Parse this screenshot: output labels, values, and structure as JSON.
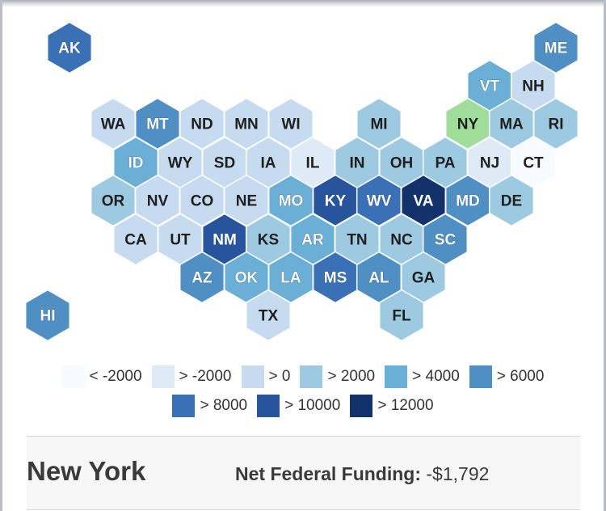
{
  "colors": {
    "bins": [
      "#f7fbff",
      "#deebf7",
      "#c6dbef",
      "#9ecae1",
      "#6baed6",
      "#4f8fc4",
      "#3a70b5",
      "#27549c",
      "#13316a"
    ],
    "selected": "#a1dd9a",
    "hex_stroke": "#ffffff"
  },
  "map": {
    "states": [
      {
        "abbr": "AK",
        "bin": 6
      },
      {
        "abbr": "ME",
        "bin": 5
      },
      {
        "abbr": "VT",
        "bin": 4
      },
      {
        "abbr": "NH",
        "bin": 2
      },
      {
        "abbr": "WA",
        "bin": 2
      },
      {
        "abbr": "MT",
        "bin": 5
      },
      {
        "abbr": "ND",
        "bin": 2
      },
      {
        "abbr": "MN",
        "bin": 2
      },
      {
        "abbr": "WI",
        "bin": 2
      },
      {
        "abbr": "MI",
        "bin": 3
      },
      {
        "abbr": "NY",
        "bin": -1
      },
      {
        "abbr": "MA",
        "bin": 3
      },
      {
        "abbr": "RI",
        "bin": 3
      },
      {
        "abbr": "ID",
        "bin": 4
      },
      {
        "abbr": "WY",
        "bin": 2
      },
      {
        "abbr": "SD",
        "bin": 2
      },
      {
        "abbr": "IA",
        "bin": 2
      },
      {
        "abbr": "IL",
        "bin": 1
      },
      {
        "abbr": "IN",
        "bin": 3
      },
      {
        "abbr": "OH",
        "bin": 3
      },
      {
        "abbr": "PA",
        "bin": 3
      },
      {
        "abbr": "NJ",
        "bin": 1
      },
      {
        "abbr": "CT",
        "bin": 0
      },
      {
        "abbr": "OR",
        "bin": 3
      },
      {
        "abbr": "NV",
        "bin": 2
      },
      {
        "abbr": "CO",
        "bin": 2
      },
      {
        "abbr": "NE",
        "bin": 2
      },
      {
        "abbr": "MO",
        "bin": 4
      },
      {
        "abbr": "KY",
        "bin": 7
      },
      {
        "abbr": "WV",
        "bin": 6
      },
      {
        "abbr": "VA",
        "bin": 8
      },
      {
        "abbr": "MD",
        "bin": 5
      },
      {
        "abbr": "DE",
        "bin": 3
      },
      {
        "abbr": "CA",
        "bin": 2
      },
      {
        "abbr": "UT",
        "bin": 2
      },
      {
        "abbr": "NM",
        "bin": 7
      },
      {
        "abbr": "KS",
        "bin": 3
      },
      {
        "abbr": "AR",
        "bin": 4
      },
      {
        "abbr": "TN",
        "bin": 3
      },
      {
        "abbr": "NC",
        "bin": 3
      },
      {
        "abbr": "SC",
        "bin": 5
      },
      {
        "abbr": "AZ",
        "bin": 5
      },
      {
        "abbr": "OK",
        "bin": 4
      },
      {
        "abbr": "LA",
        "bin": 4
      },
      {
        "abbr": "MS",
        "bin": 6
      },
      {
        "abbr": "AL",
        "bin": 5
      },
      {
        "abbr": "GA",
        "bin": 3
      },
      {
        "abbr": "HI",
        "bin": 5
      },
      {
        "abbr": "TX",
        "bin": 2
      },
      {
        "abbr": "FL",
        "bin": 3
      }
    ]
  },
  "legend": {
    "items": [
      {
        "label": "< -2000"
      },
      {
        "label": "> -2000"
      },
      {
        "label": "> 0"
      },
      {
        "label": "> 2000"
      },
      {
        "label": "> 4000"
      },
      {
        "label": "> 6000"
      },
      {
        "label": "> 8000"
      },
      {
        "label": "> 10000"
      },
      {
        "label": "> 12000"
      }
    ]
  },
  "detail": {
    "state_name": "New York",
    "funding_label": "Net Federal Funding:",
    "funding_value": "-$1,792"
  }
}
